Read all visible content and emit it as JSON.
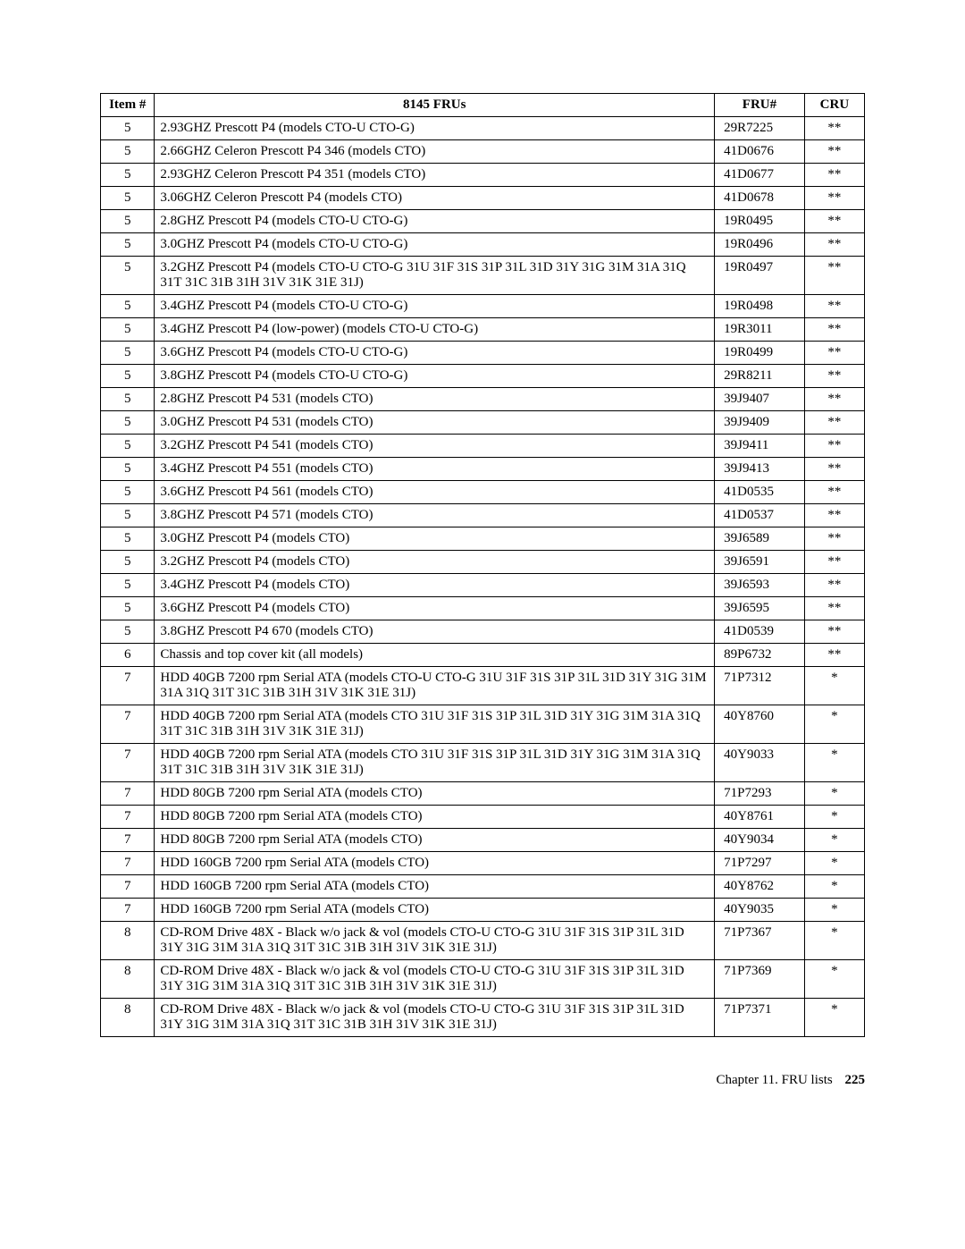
{
  "table": {
    "headers": {
      "item": "Item #",
      "desc": "8145 FRUs",
      "fru": "FRU#",
      "cru": "CRU"
    },
    "rows": [
      {
        "item": "5",
        "desc": "2.93GHZ Prescott P4 (models CTO-U CTO-G)",
        "fru": "29R7225",
        "cru": "**"
      },
      {
        "item": "5",
        "desc": "2.66GHZ Celeron Prescott P4 346 (models CTO)",
        "fru": "41D0676",
        "cru": "**"
      },
      {
        "item": "5",
        "desc": "2.93GHZ Celeron Prescott P4 351 (models CTO)",
        "fru": "41D0677",
        "cru": "**"
      },
      {
        "item": "5",
        "desc": "3.06GHZ Celeron Prescott P4 (models CTO)",
        "fru": "41D0678",
        "cru": "**"
      },
      {
        "item": "5",
        "desc": "2.8GHZ Prescott P4 (models CTO-U CTO-G)",
        "fru": "19R0495",
        "cru": "**"
      },
      {
        "item": "5",
        "desc": "3.0GHZ Prescott P4 (models CTO-U CTO-G)",
        "fru": "19R0496",
        "cru": "**"
      },
      {
        "item": "5",
        "desc": "3.2GHZ Prescott P4 (models CTO-U CTO-G 31U 31F 31S 31P 31L 31D 31Y 31G 31M 31A 31Q 31T 31C 31B 31H 31V 31K 31E 31J)",
        "fru": "19R0497",
        "cru": "**"
      },
      {
        "item": "5",
        "desc": "3.4GHZ Prescott P4 (models CTO-U CTO-G)",
        "fru": "19R0498",
        "cru": "**"
      },
      {
        "item": "5",
        "desc": "3.4GHZ Prescott P4 (low-power) (models CTO-U CTO-G)",
        "fru": "19R3011",
        "cru": "**"
      },
      {
        "item": "5",
        "desc": "3.6GHZ Prescott P4 (models CTO-U CTO-G)",
        "fru": "19R0499",
        "cru": "**"
      },
      {
        "item": "5",
        "desc": "3.8GHZ Prescott P4 (models CTO-U CTO-G)",
        "fru": "29R8211",
        "cru": "**"
      },
      {
        "item": "5",
        "desc": "2.8GHZ Prescott P4 531 (models CTO)",
        "fru": "39J9407",
        "cru": "**"
      },
      {
        "item": "5",
        "desc": "3.0GHZ Prescott P4 531 (models CTO)",
        "fru": "39J9409",
        "cru": "**"
      },
      {
        "item": "5",
        "desc": "3.2GHZ Prescott P4 541 (models CTO)",
        "fru": "39J9411",
        "cru": "**"
      },
      {
        "item": "5",
        "desc": "3.4GHZ Prescott P4 551 (models CTO)",
        "fru": "39J9413",
        "cru": "**"
      },
      {
        "item": "5",
        "desc": "3.6GHZ Prescott P4 561 (models CTO)",
        "fru": "41D0535",
        "cru": "**"
      },
      {
        "item": "5",
        "desc": "3.8GHZ Prescott P4 571 (models CTO)",
        "fru": "41D0537",
        "cru": "**"
      },
      {
        "item": "5",
        "desc": "3.0GHZ Prescott P4 (models CTO)",
        "fru": "39J6589",
        "cru": "**"
      },
      {
        "item": "5",
        "desc": "3.2GHZ Prescott P4 (models CTO)",
        "fru": "39J6591",
        "cru": "**"
      },
      {
        "item": "5",
        "desc": "3.4GHZ Prescott P4 (models CTO)",
        "fru": "39J6593",
        "cru": "**"
      },
      {
        "item": "5",
        "desc": "3.6GHZ Prescott P4 (models CTO)",
        "fru": "39J6595",
        "cru": "**"
      },
      {
        "item": "5",
        "desc": "3.8GHZ Prescott P4 670 (models CTO)",
        "fru": "41D0539",
        "cru": "**"
      },
      {
        "item": "6",
        "desc": "Chassis and top cover kit (all models)",
        "fru": "89P6732",
        "cru": "**"
      },
      {
        "item": "7",
        "desc": "HDD 40GB 7200 rpm Serial ATA (models CTO-U CTO-G 31U 31F 31S 31P 31L 31D 31Y 31G 31M 31A 31Q 31T 31C 31B 31H 31V 31K 31E 31J)",
        "fru": "71P7312",
        "cru": "*"
      },
      {
        "item": "7",
        "desc": "HDD 40GB 7200 rpm Serial ATA (models CTO 31U 31F 31S 31P 31L 31D 31Y 31G 31M 31A 31Q 31T 31C 31B 31H 31V 31K 31E 31J)",
        "fru": "40Y8760",
        "cru": "*"
      },
      {
        "item": "7",
        "desc": "HDD 40GB 7200 rpm Serial ATA (models CTO 31U 31F 31S 31P 31L 31D 31Y 31G 31M 31A 31Q 31T 31C 31B 31H 31V 31K 31E 31J)",
        "fru": "40Y9033",
        "cru": "*"
      },
      {
        "item": "7",
        "desc": "HDD 80GB 7200 rpm Serial ATA (models CTO)",
        "fru": "71P7293",
        "cru": "*"
      },
      {
        "item": "7",
        "desc": "HDD 80GB 7200 rpm Serial ATA (models CTO)",
        "fru": "40Y8761",
        "cru": "*"
      },
      {
        "item": "7",
        "desc": "HDD 80GB 7200 rpm Serial ATA (models CTO)",
        "fru": "40Y9034",
        "cru": "*"
      },
      {
        "item": "7",
        "desc": "HDD 160GB 7200 rpm Serial ATA (models CTO)",
        "fru": "71P7297",
        "cru": "*"
      },
      {
        "item": "7",
        "desc": "HDD 160GB 7200 rpm Serial ATA (models CTO)",
        "fru": "40Y8762",
        "cru": "*"
      },
      {
        "item": "7",
        "desc": "HDD 160GB 7200 rpm Serial ATA (models CTO)",
        "fru": "40Y9035",
        "cru": "*"
      },
      {
        "item": "8",
        "desc": "CD-ROM Drive 48X - Black w/o jack & vol (models CTO-U CTO-G 31U 31F 31S 31P 31L 31D 31Y 31G 31M 31A 31Q 31T 31C 31B 31H 31V 31K 31E 31J)",
        "fru": "71P7367",
        "cru": "*"
      },
      {
        "item": "8",
        "desc": "CD-ROM Drive 48X - Black w/o jack & vol (models CTO-U CTO-G 31U 31F 31S 31P 31L 31D 31Y 31G 31M 31A 31Q 31T 31C 31B 31H 31V 31K 31E 31J)",
        "fru": "71P7369",
        "cru": "*"
      },
      {
        "item": "8",
        "desc": "CD-ROM Drive 48X - Black w/o jack & vol (models CTO-U CTO-G 31U 31F 31S 31P 31L 31D 31Y 31G 31M 31A 31Q 31T 31C 31B 31H 31V 31K 31E 31J)",
        "fru": "71P7371",
        "cru": "*"
      }
    ]
  },
  "footer": {
    "chapter": "Chapter 11. FRU lists",
    "page": "225"
  }
}
